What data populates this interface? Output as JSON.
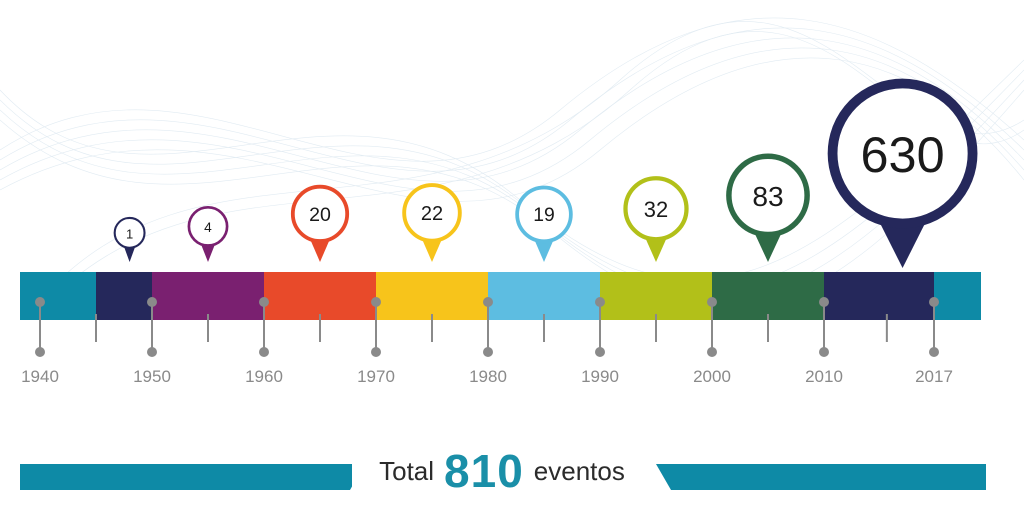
{
  "chart_data": {
    "type": "bar",
    "title": "",
    "xlabel": "",
    "ylabel": "",
    "categories": [
      "1940s",
      "1950s",
      "1960s",
      "1970s",
      "1980s",
      "1990s",
      "2000s",
      "2010s"
    ],
    "values": [
      1,
      4,
      20,
      22,
      19,
      32,
      83,
      630
    ],
    "value_labels": [
      "1",
      "4",
      "20",
      "22",
      "19",
      "32",
      "83",
      "630"
    ],
    "ticks": [
      "1940",
      "1950",
      "1960",
      "1970",
      "1980",
      "1990",
      "2000",
      "2010",
      "2017"
    ],
    "tick_years": [
      1940,
      1950,
      1960,
      1970,
      1980,
      1990,
      2000,
      2010,
      2017
    ],
    "pin_years": [
      1948,
      1955,
      1965,
      1975,
      1985,
      1995,
      2005,
      2015
    ],
    "segment_years": [
      1940,
      1945,
      1950,
      1960,
      1970,
      1980,
      1990,
      2000,
      2010,
      2017,
      2021
    ],
    "colors": [
      "#0e8aa6",
      "#25285b",
      "#7a2070",
      "#e84a2a",
      "#f7c41b",
      "#5dbde1",
      "#b2c019",
      "#2e6b46",
      "#25285b",
      "#0e8aa6"
    ],
    "pin_colors": [
      "#25285b",
      "#7a2070",
      "#e84a2a",
      "#f7c41b",
      "#5dbde1",
      "#b2c019",
      "#2e6b46",
      "#25285b"
    ],
    "accent": "#0e8aa6",
    "axis_color": "#8a8a8a"
  },
  "total": {
    "prefix": "Total",
    "value": "810",
    "suffix": "eventos"
  }
}
